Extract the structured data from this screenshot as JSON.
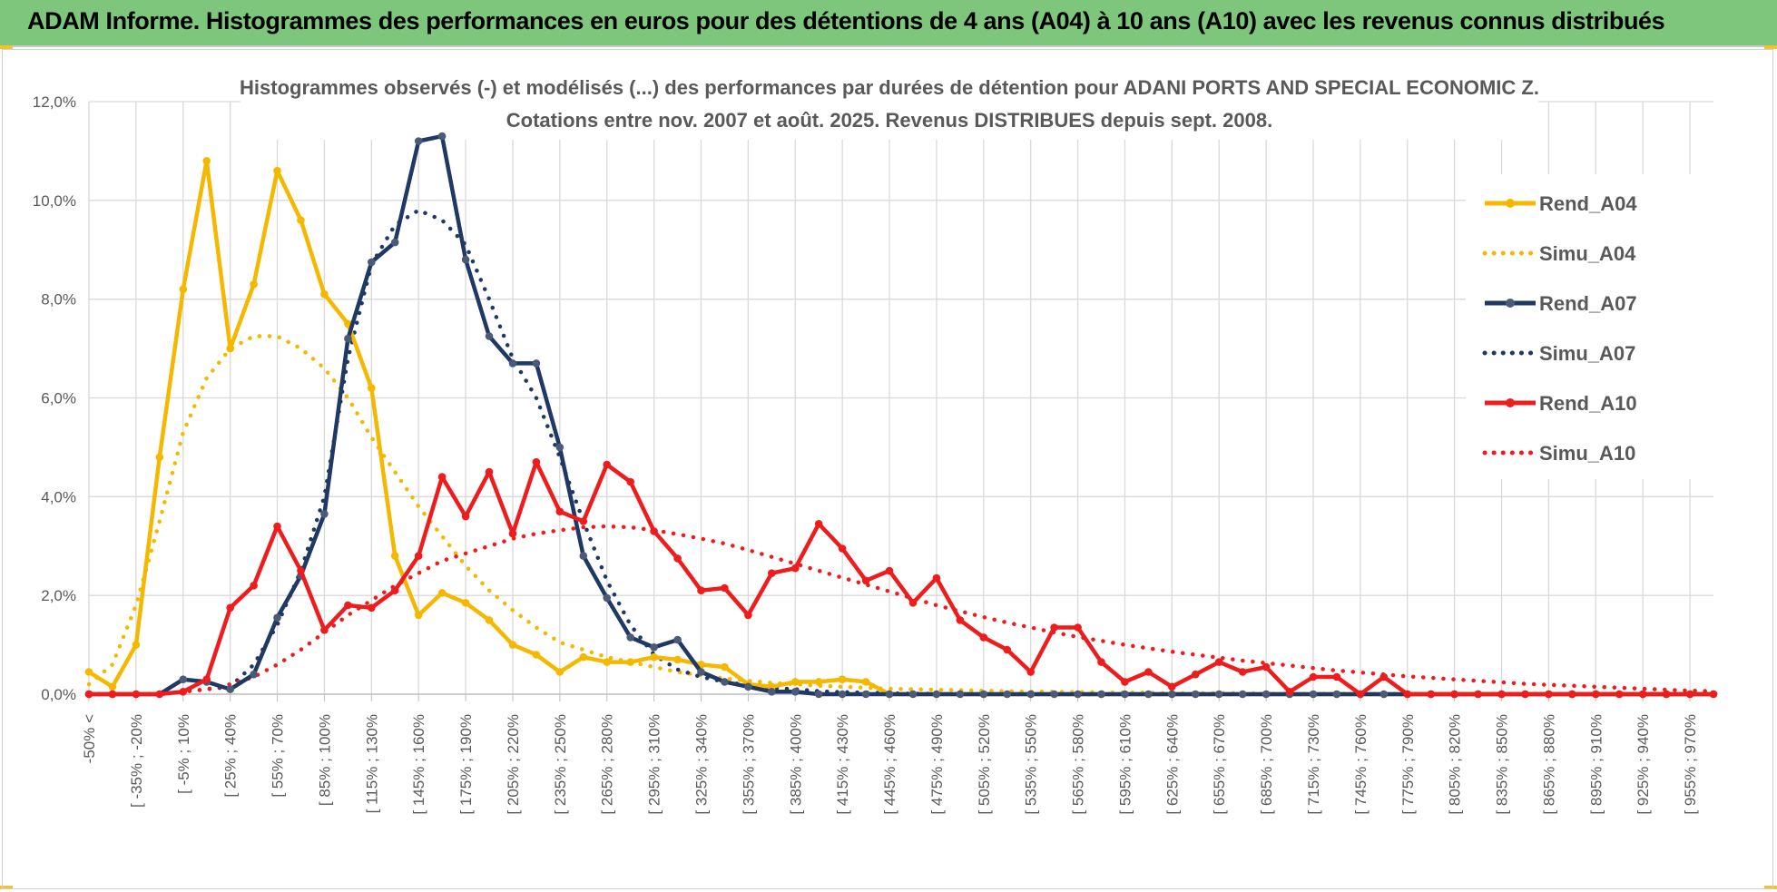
{
  "page": {
    "banner_title": "ADAM Informe. Histogrammes des performances en euros pour des détentions de 4 ans (A04) à 10 ans (A10) avec les revenus connus distribués",
    "colors": {
      "banner": "#7dc67b",
      "corner": "#f2c230"
    }
  },
  "chart_data": {
    "type": "line",
    "title": "Histogrammes observés (-) et modélisés (...) des performances par durées de détention pour ADANI PORTS AND SPECIAL ECONOMIC Z.",
    "subtitle": "Cotations entre nov. 2007 et août. 2025. Revenus DISTRIBUES depuis sept. 2008.",
    "ylim": [
      0,
      12
    ],
    "yticks": [
      "0,0%",
      "2,0%",
      "4,0%",
      "6,0%",
      "8,0%",
      "10,0%",
      "12,0%"
    ],
    "grid": true,
    "legend_position": "right",
    "x_labels": [
      "-50% <",
      "[ -35% ; -20%",
      "[ -5% ; 10%",
      "[ 25% ; 40%",
      "[ 55% ; 70%",
      "[ 85% ; 100%",
      "[ 115% ; 130%",
      "[ 145% ; 160%",
      "[ 175% ; 190%",
      "[ 205% ; 220%",
      "[ 235% ; 250%",
      "[ 265% ; 280%",
      "[ 295% ; 310%",
      "[ 325% ; 340%",
      "[ 355% ; 370%",
      "[ 385% ; 400%",
      "[ 415% ; 430%",
      "[ 445% ; 460%",
      "[ 475% ; 490%",
      "[ 505% ; 520%",
      "[ 535% ; 550%",
      "[ 565% ; 580%",
      "[ 595% ; 610%",
      "[ 625% ; 640%",
      "[ 655% ; 670%",
      "[ 685% ; 700%",
      "[ 715% ; 730%",
      "[ 745% ; 760%",
      "[ 775% ; 790%",
      "[ 805% ; 820%",
      "[ 835% ; 850%",
      "[ 865% ; 880%",
      "[ 895% ; 910%",
      "[ 925% ; 940%",
      "[ 955% ; 970%"
    ],
    "series": [
      {
        "name": "Rend_A04",
        "style": "solid",
        "color": "#f5b800",
        "values": [
          0.45,
          0.15,
          1.0,
          4.8,
          8.2,
          10.8,
          7.0,
          8.3,
          10.6,
          9.6,
          8.1,
          7.5,
          6.2,
          2.8,
          1.6,
          2.05,
          1.85,
          1.5,
          1.0,
          0.8,
          0.45,
          0.75,
          0.65,
          0.65,
          0.75,
          0.7,
          0.6,
          0.55,
          0.2,
          0.15,
          0.25,
          0.25,
          0.3,
          0.25,
          0.0,
          0.0,
          0.0,
          0.0,
          0.0,
          0.0,
          0.0,
          0.0,
          0.0,
          0.0,
          0.0,
          0.0,
          0.0,
          0.0,
          0.0,
          0.0,
          0.0,
          0.0,
          0.0,
          0.0,
          0.0,
          0.0,
          0.0,
          0.0,
          0.0,
          0.0,
          0.0,
          0.0,
          0.0,
          0.0,
          0.0,
          0.0,
          0.0,
          0.0,
          0.0,
          0.0
        ]
      },
      {
        "name": "Simu_A04",
        "style": "dotted",
        "color": "#f5b800",
        "values": [
          0.2,
          0.6,
          1.8,
          3.5,
          5.3,
          6.4,
          7.0,
          7.25,
          7.25,
          7.0,
          6.6,
          6.0,
          5.2,
          4.5,
          3.8,
          3.2,
          2.6,
          2.1,
          1.7,
          1.35,
          1.05,
          0.9,
          0.75,
          0.65,
          0.55,
          0.45,
          0.38,
          0.32,
          0.27,
          0.23,
          0.2,
          0.17,
          0.15,
          0.13,
          0.11,
          0.1,
          0.09,
          0.08,
          0.07,
          0.06,
          0.05,
          0.05,
          0.04,
          0.04,
          0.03,
          0.03,
          0.02,
          0.02,
          0.02,
          0.02,
          0.01,
          0.01,
          0.01,
          0.01,
          0.01,
          0.01,
          0.01,
          0.0,
          0.0,
          0.0,
          0.0,
          0.0,
          0.0,
          0.0,
          0.0,
          0.0,
          0.0,
          0.0,
          0.0,
          0.0
        ]
      },
      {
        "name": "Rend_A07",
        "style": "solid",
        "color": "#1f3864",
        "values": [
          0.0,
          0.0,
          0.0,
          0.0,
          0.3,
          0.25,
          0.1,
          0.4,
          1.55,
          2.4,
          3.65,
          7.2,
          8.75,
          9.15,
          11.2,
          11.3,
          8.8,
          7.25,
          6.7,
          6.7,
          5.0,
          2.8,
          1.95,
          1.15,
          0.95,
          1.1,
          0.45,
          0.25,
          0.15,
          0.05,
          0.05,
          0.0,
          0.0,
          0.0,
          0.0,
          0.0,
          0.0,
          0.0,
          0.0,
          0.0,
          0.0,
          0.0,
          0.0,
          0.0,
          0.0,
          0.0,
          0.0,
          0.0,
          0.0,
          0.0,
          0.0,
          0.0,
          0.0,
          0.0,
          0.0,
          0.0,
          0.0,
          0.0,
          0.0,
          0.0,
          0.0,
          0.0,
          0.0,
          0.0,
          0.0,
          0.0,
          0.0,
          0.0,
          0.0,
          0.0
        ]
      },
      {
        "name": "Simu_A07",
        "style": "dotted",
        "color": "#1f3864",
        "values": [
          0.0,
          0.0,
          0.0,
          0.0,
          0.05,
          0.1,
          0.15,
          0.6,
          1.4,
          2.5,
          4.0,
          6.8,
          8.7,
          9.5,
          9.8,
          9.6,
          9.1,
          8.0,
          6.8,
          6.0,
          4.8,
          3.5,
          2.3,
          1.4,
          0.8,
          0.5,
          0.35,
          0.25,
          0.18,
          0.13,
          0.1,
          0.06,
          0.04,
          0.03,
          0.02,
          0.01,
          0.01,
          0.0,
          0.0,
          0.0,
          0.0,
          0.0,
          0.0,
          0.0,
          0.0,
          0.0,
          0.0,
          0.0,
          0.0,
          0.0,
          0.0,
          0.0,
          0.0,
          0.0,
          0.0,
          0.0,
          0.0,
          0.0,
          0.0,
          0.0,
          0.0,
          0.0,
          0.0,
          0.0,
          0.0,
          0.0,
          0.0,
          0.0,
          0.0,
          0.0
        ]
      },
      {
        "name": "Rend_A10",
        "style": "solid",
        "color": "#ee1c1c",
        "values": [
          0.0,
          0.0,
          0.0,
          0.0,
          0.05,
          0.3,
          1.75,
          2.2,
          3.4,
          2.5,
          1.3,
          1.8,
          1.75,
          2.1,
          2.8,
          4.4,
          3.6,
          4.5,
          3.25,
          4.7,
          3.7,
          3.5,
          4.65,
          4.3,
          3.3,
          2.75,
          2.1,
          2.15,
          1.6,
          2.45,
          2.55,
          3.45,
          2.95,
          2.3,
          2.5,
          1.85,
          2.35,
          1.5,
          1.15,
          0.9,
          0.45,
          1.35,
          1.35,
          0.65,
          0.25,
          0.45,
          0.15,
          0.4,
          0.65,
          0.45,
          0.55,
          0.05,
          0.35,
          0.35,
          0.0,
          0.35,
          0.0,
          0.0,
          0.0,
          0.0,
          0.0,
          0.0,
          0.0,
          0.0,
          0.0,
          0.0,
          0.0,
          0.0,
          0.0,
          0.0
        ]
      },
      {
        "name": "Simu_A10",
        "style": "dotted",
        "color": "#ee1c1c",
        "values": [
          0.0,
          0.0,
          0.0,
          0.0,
          0.05,
          0.1,
          0.2,
          0.35,
          0.6,
          0.9,
          1.25,
          1.6,
          1.9,
          2.2,
          2.45,
          2.7,
          2.85,
          3.0,
          3.15,
          3.25,
          3.32,
          3.38,
          3.4,
          3.38,
          3.32,
          3.24,
          3.15,
          3.05,
          2.92,
          2.78,
          2.64,
          2.5,
          2.36,
          2.22,
          2.08,
          1.94,
          1.8,
          1.68,
          1.56,
          1.45,
          1.35,
          1.25,
          1.16,
          1.08,
          1.0,
          0.93,
          0.86,
          0.8,
          0.74,
          0.68,
          0.63,
          0.58,
          0.53,
          0.48,
          0.44,
          0.4,
          0.36,
          0.33,
          0.3,
          0.27,
          0.24,
          0.21,
          0.19,
          0.17,
          0.15,
          0.13,
          0.11,
          0.09,
          0.07,
          0.06
        ]
      }
    ]
  }
}
